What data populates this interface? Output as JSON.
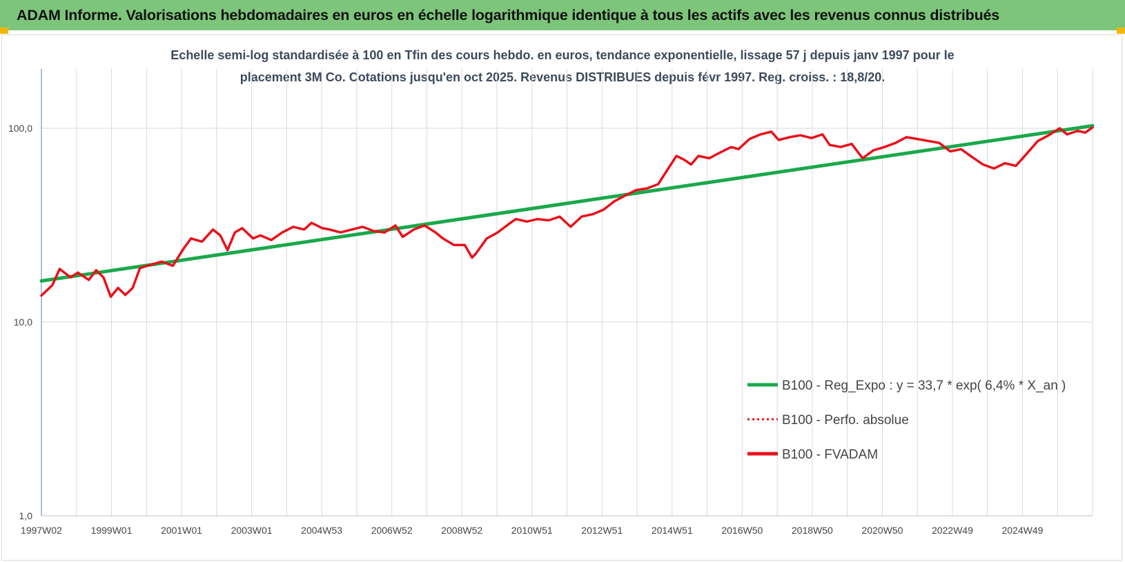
{
  "header": {
    "title": "ADAM Informe. Valorisations hebdomadaires en euros en échelle logarithmique identique à tous les actifs avec les revenus connus distribués"
  },
  "colors": {
    "header_bg": "#7dc57a",
    "regression": "#1aa84b",
    "fvadam": "#e8111b",
    "perfo": "#e8111b",
    "grid": "#d9d9d9"
  },
  "chart_data": {
    "type": "line",
    "title_line1": "Echelle semi-log standardisée à 100 en Tfin des cours hebdo. en euros, tendance exponentielle, lissage 57 j depuis janv 1997 pour le",
    "title_line2": "placement 3M Co. Cotations jusqu'en oct 2025. Revenus DISTRIBUES depuis févr 1997. Reg. croiss. : 18,8/20.",
    "y_scale": "log",
    "ylim": [
      1,
      100
    ],
    "y_ticks": [
      "1,0",
      "10,0",
      "100,0"
    ],
    "x_ticks": [
      "1997W02",
      "1999W01",
      "2001W01",
      "2003W01",
      "2004W53",
      "2006W52",
      "2008W52",
      "2010W51",
      "2012W51",
      "2014W51",
      "2016W50",
      "2018W50",
      "2020W50",
      "2022W49",
      "2024W49"
    ],
    "x_range": [
      1997.0,
      2025.8
    ],
    "grid": true,
    "legend_position": "right",
    "legend": [
      {
        "label": "B100 - Reg_Expo : y = 33,7 * exp( 6,4% *  X_an )",
        "style": "solid-green"
      },
      {
        "label": "B100 - Perfo. absolue",
        "style": "dotted-red"
      },
      {
        "label": "B100 - FVADAM",
        "style": "solid-red"
      }
    ],
    "series": [
      {
        "name": "B100 - Reg_Expo : y = 33,7 * exp( 6,4% *  X_an )",
        "x": [
          1997.0,
          2025.8
        ],
        "y": [
          16.3,
          103
        ]
      },
      {
        "name": "B100 - FVADAM",
        "x": [
          1997.0,
          1997.3,
          1997.5,
          1997.8,
          1998.0,
          1998.3,
          1998.5,
          1998.7,
          1998.9,
          1999.1,
          1999.3,
          1999.5,
          1999.7,
          1999.9,
          2000.1,
          2000.3,
          2000.6,
          2000.9,
          2001.1,
          2001.4,
          2001.7,
          2001.9,
          2002.1,
          2002.3,
          2002.5,
          2002.8,
          2003.0,
          2003.3,
          2003.6,
          2003.9,
          2004.2,
          2004.4,
          2004.7,
          2004.9,
          2005.2,
          2005.5,
          2005.8,
          2006.1,
          2006.4,
          2006.7,
          2006.9,
          2007.2,
          2007.5,
          2007.8,
          2008.0,
          2008.3,
          2008.6,
          2008.8,
          2008.9,
          2009.2,
          2009.5,
          2009.8,
          2010.0,
          2010.3,
          2010.6,
          2010.9,
          2011.2,
          2011.5,
          2011.8,
          2012.1,
          2012.4,
          2012.7,
          2013.0,
          2013.3,
          2013.6,
          2013.9,
          2014.1,
          2014.4,
          2014.6,
          2014.8,
          2015.0,
          2015.3,
          2015.6,
          2015.9,
          2016.1,
          2016.4,
          2016.7,
          2017.0,
          2017.2,
          2017.5,
          2017.8,
          2018.1,
          2018.4,
          2018.6,
          2018.9,
          2019.2,
          2019.5,
          2019.8,
          2020.1,
          2020.4,
          2020.7,
          2021.0,
          2021.3,
          2021.6,
          2021.9,
          2022.2,
          2022.5,
          2022.8,
          2023.1,
          2023.4,
          2023.7,
          2024.0,
          2024.3,
          2024.6,
          2024.9,
          2025.1,
          2025.4,
          2025.6,
          2025.8
        ],
        "y": [
          13.7,
          15.5,
          18.8,
          17.0,
          18.0,
          16.5,
          18.5,
          17.0,
          13.5,
          15.0,
          13.8,
          15.0,
          19.0,
          19.5,
          20.0,
          20.5,
          19.5,
          24.0,
          27.0,
          26.0,
          30.0,
          28.0,
          23.5,
          29.0,
          30.5,
          27.0,
          28.0,
          26.5,
          29.0,
          31.0,
          30.0,
          32.5,
          30.5,
          30.0,
          29.0,
          30.0,
          31.0,
          29.5,
          29.0,
          31.5,
          27.5,
          30.0,
          31.5,
          29.0,
          27.0,
          25.0,
          25.0,
          21.5,
          22.5,
          27.0,
          29.0,
          32.0,
          34.0,
          33.0,
          34.0,
          33.5,
          35.0,
          31.0,
          35.0,
          36.0,
          38.0,
          42.0,
          45.0,
          48.0,
          49.0,
          51.5,
          59.0,
          72.0,
          69.0,
          65.0,
          72.0,
          70.0,
          75.0,
          80.0,
          78.0,
          88.0,
          93.0,
          96.0,
          87.0,
          90.0,
          92.0,
          89.0,
          93.0,
          82.0,
          80.0,
          83.0,
          70.0,
          77.0,
          80.0,
          84.0,
          90.0,
          88.0,
          86.0,
          84.0,
          76.0,
          78.0,
          71.0,
          65.0,
          62.0,
          66.0,
          64.0,
          74.0,
          86.0,
          92.0,
          100.0,
          93.0,
          97.0,
          95.0,
          101.0
        ]
      }
    ]
  }
}
